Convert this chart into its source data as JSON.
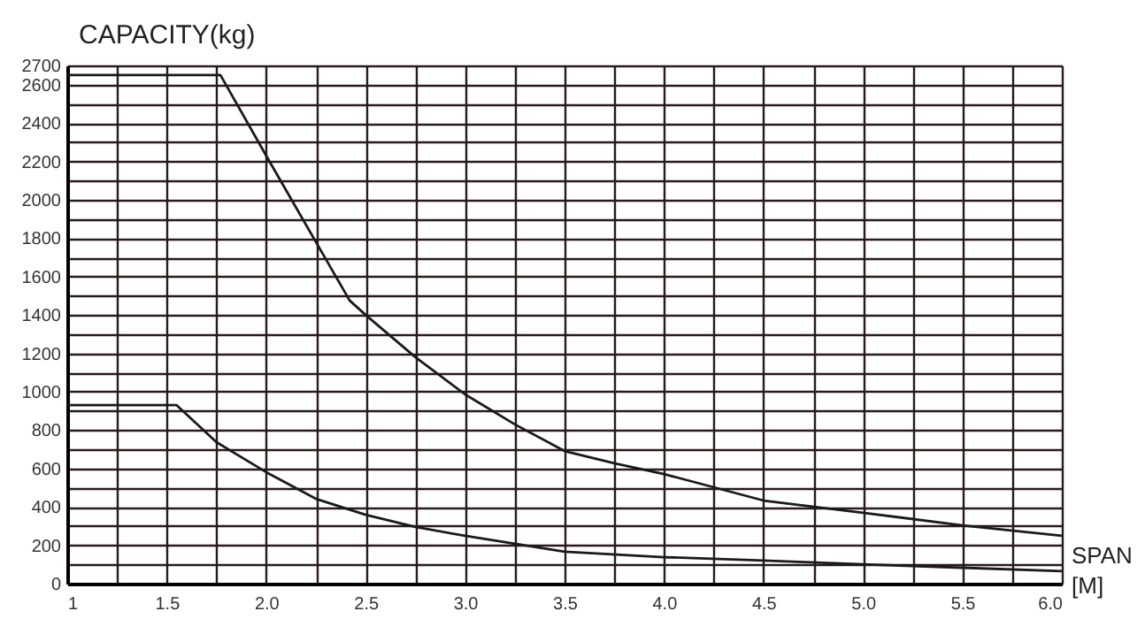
{
  "chart_data": {
    "type": "line",
    "xlabel": "SPAN [M]",
    "ylabel": "CAPACITY(kg)",
    "x": [
      1,
      1.77,
      2.0,
      2.25,
      2.42,
      2.5,
      2.75,
      3.0,
      3.25,
      3.5,
      3.75,
      4.0,
      4.5,
      5.0,
      5.5,
      6.0
    ],
    "series": [
      {
        "color": "#1a1a1a",
        "values": [
          2650,
          2650,
          2230,
          1780,
          1475,
          1400,
          1180,
          986,
          830,
          691,
          627,
          571,
          433,
          369,
          304,
          249
        ]
      },
      {
        "color": "#1a1a1a",
        "x": [
          1,
          1.55,
          1.75,
          2.0,
          2.25,
          2.5,
          2.75,
          3.0,
          3.5,
          4.0,
          4.5,
          5.0,
          5.5,
          6.0
        ],
        "values": [
          930,
          930,
          737,
          581,
          442,
          359,
          295,
          249,
          166,
          138,
          120,
          101,
          83,
          65
        ]
      }
    ],
    "xlim": [
      1,
      6
    ],
    "ylim": [
      0,
      2700
    ],
    "xticks": [
      1,
      1.5,
      {
        "value": 2,
        "label": "2.0"
      },
      2.5,
      {
        "value": 3,
        "label": "3.0"
      },
      3.5,
      {
        "value": 4,
        "label": "4.0"
      },
      4.5,
      {
        "value": 5,
        "label": "5.0"
      },
      5.5,
      {
        "value": 6,
        "label": "6.0"
      },
      {
        "value": 1.25,
        "label": null
      },
      {
        "value": 1.75,
        "label": null
      },
      {
        "value": 2.25,
        "label": null
      },
      {
        "value": 2.75,
        "label": null
      },
      {
        "value": 3.25,
        "label": null
      },
      {
        "value": 3.75,
        "label": null
      },
      {
        "value": 4.25,
        "label": null
      },
      {
        "value": 4.75,
        "label": null
      },
      {
        "value": 5.25,
        "label": null
      },
      {
        "value": 5.75,
        "label": null
      }
    ],
    "yticks": [
      0,
      200,
      400,
      600,
      800,
      1000,
      1200,
      1400,
      1600,
      1800,
      2000,
      2200,
      2400,
      2600,
      2700,
      {
        "value": 100,
        "label": null
      },
      {
        "value": 300,
        "label": null
      },
      {
        "value": 500,
        "label": null
      },
      {
        "value": 700,
        "label": null
      },
      {
        "value": 900,
        "label": null
      },
      {
        "value": 1100,
        "label": null
      },
      {
        "value": 1300,
        "label": null
      },
      {
        "value": 1500,
        "label": null
      },
      {
        "value": 1700,
        "label": null
      },
      {
        "value": 1900,
        "label": null
      },
      {
        "value": 2100,
        "label": null
      },
      {
        "value": 2300,
        "label": null
      },
      {
        "value": 2500,
        "label": null
      }
    ],
    "grid": true,
    "marker": "none",
    "line_style": "solid"
  }
}
